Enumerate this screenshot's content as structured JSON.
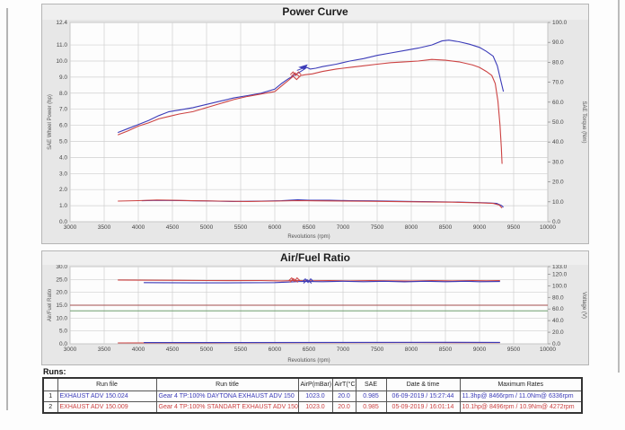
{
  "colors": {
    "run1_blue": "#3b3bb8",
    "run2_red": "#cc4242",
    "afr_ref_red": "#a34d4d",
    "afr_ref_green": "#6f9e6f",
    "grid": "#cfcfcf",
    "panel_gray": "#e7e7e7"
  },
  "runs_table": {
    "title": "Runs:",
    "headers": [
      "",
      "Run file",
      "Run title",
      "AirP(mBar)",
      "AirT(°C)",
      "SAE",
      "Date & time",
      "Maximum Rates"
    ],
    "rows": [
      {
        "num": "1",
        "color": "#3b3bb8",
        "cells": [
          "EXHAUST ADV 150.024",
          "Gear 4 TP:100% DAYTONA EXHAUST ADV 150",
          "1023.0",
          "20.0",
          "0.985",
          "06-09-2019 / 15:27:44",
          "11.3hp@ 8466rpm / 11.0Nm@ 6336rpm"
        ]
      },
      {
        "num": "2",
        "color": "#cc4242",
        "cells": [
          "EXHAUST ADV 150.009",
          "Gear 4 TP:100% STANDART EXHAUST ADV 150",
          "1023.0",
          "20.0",
          "0.985",
          "05-09-2019 / 16:01:14",
          "10.1hp@ 8496rpm / 10.9Nm@ 4272rpm"
        ]
      }
    ]
  },
  "chart_data": [
    {
      "type": "line",
      "title": "Power Curve",
      "xlabel": "Revolutions (rpm)",
      "x": {
        "min": 3000,
        "max": 10000,
        "values": [
          3000,
          3500,
          4000,
          4500,
          5000,
          5500,
          6000,
          6500,
          7000,
          7500,
          8000,
          8500,
          9000,
          9500,
          10000
        ],
        "labels": [
          "3000",
          "3500",
          "4000",
          "4500",
          "5000",
          "5500",
          "6000",
          "6500",
          "7000",
          "7500",
          "8000",
          "8500",
          "9000",
          "9500",
          "10000"
        ]
      },
      "left_axis": {
        "label": "SAE Wheel Power (hp)",
        "values": [
          12.4,
          11,
          10,
          9,
          8,
          7,
          6,
          5,
          4,
          3,
          2,
          1,
          0
        ],
        "labels": [
          "12.4",
          "11.0",
          "10.0",
          "9.0",
          "8.0",
          "7.0",
          "6.0",
          "5.0",
          "4.0",
          "3.0",
          "2.0",
          "1.0",
          "0.0"
        ]
      },
      "right_axis": {
        "label": "SAE Torque (Nm)",
        "values": [
          100,
          90,
          80,
          70,
          60,
          50,
          40,
          30,
          20,
          10,
          0
        ],
        "labels": [
          "100.0",
          "90.0",
          "80.0",
          "70.0",
          "60.0",
          "50.0",
          "40.0",
          "30.0",
          "20.0",
          "10.0",
          "0.0"
        ]
      },
      "series": [
        {
          "name": "daytona-power-hp",
          "color": "#3b3bb8",
          "axis": "left",
          "points": [
            [
              3700,
              5.55
            ],
            [
              3850,
              5.8
            ],
            [
              4000,
              6.05
            ],
            [
              4150,
              6.3
            ],
            [
              4300,
              6.6
            ],
            [
              4450,
              6.85
            ],
            [
              4600,
              6.95
            ],
            [
              4800,
              7.1
            ],
            [
              5000,
              7.3
            ],
            [
              5200,
              7.5
            ],
            [
              5400,
              7.7
            ],
            [
              5600,
              7.85
            ],
            [
              5800,
              8.0
            ],
            [
              6000,
              8.25
            ],
            [
              6100,
              8.6
            ],
            [
              6200,
              8.9
            ],
            [
              6300,
              9.15
            ],
            [
              6400,
              9.4
            ],
            [
              6470,
              9.6
            ],
            [
              6520,
              9.5
            ],
            [
              6600,
              9.55
            ],
            [
              6700,
              9.65
            ],
            [
              6900,
              9.8
            ],
            [
              7100,
              10.0
            ],
            [
              7300,
              10.15
            ],
            [
              7500,
              10.35
            ],
            [
              7700,
              10.5
            ],
            [
              7900,
              10.65
            ],
            [
              8100,
              10.8
            ],
            [
              8300,
              11.0
            ],
            [
              8450,
              11.25
            ],
            [
              8550,
              11.3
            ],
            [
              8700,
              11.2
            ],
            [
              8850,
              11.05
            ],
            [
              9000,
              10.85
            ],
            [
              9100,
              10.6
            ],
            [
              9200,
              10.3
            ],
            [
              9260,
              9.7
            ],
            [
              9310,
              8.8
            ],
            [
              9350,
              8.1
            ]
          ]
        },
        {
          "name": "standart-power-hp",
          "color": "#cc4242",
          "axis": "left",
          "points": [
            [
              3700,
              5.4
            ],
            [
              3850,
              5.65
            ],
            [
              4000,
              5.95
            ],
            [
              4150,
              6.15
            ],
            [
              4300,
              6.4
            ],
            [
              4450,
              6.55
            ],
            [
              4600,
              6.7
            ],
            [
              4800,
              6.85
            ],
            [
              5000,
              7.1
            ],
            [
              5200,
              7.35
            ],
            [
              5400,
              7.6
            ],
            [
              5600,
              7.8
            ],
            [
              5800,
              7.95
            ],
            [
              6000,
              8.1
            ],
            [
              6100,
              8.45
            ],
            [
              6200,
              8.8
            ],
            [
              6270,
              9.05
            ],
            [
              6320,
              8.85
            ],
            [
              6380,
              9.1
            ],
            [
              6450,
              9.15
            ],
            [
              6550,
              9.2
            ],
            [
              6700,
              9.35
            ],
            [
              6900,
              9.5
            ],
            [
              7100,
              9.6
            ],
            [
              7300,
              9.7
            ],
            [
              7500,
              9.8
            ],
            [
              7700,
              9.9
            ],
            [
              7900,
              9.95
            ],
            [
              8100,
              10.0
            ],
            [
              8300,
              10.1
            ],
            [
              8500,
              10.05
            ],
            [
              8700,
              9.95
            ],
            [
              8900,
              9.75
            ],
            [
              9000,
              9.6
            ],
            [
              9100,
              9.35
            ],
            [
              9180,
              9.1
            ],
            [
              9230,
              8.6
            ],
            [
              9270,
              7.5
            ],
            [
              9300,
              6.0
            ],
            [
              9320,
              4.6
            ],
            [
              9330,
              3.6
            ]
          ]
        },
        {
          "name": "daytona-torque-nm",
          "color": "#3b3bb8",
          "axis": "right",
          "points": [
            [
              4050,
              10.55
            ],
            [
              4300,
              10.7
            ],
            [
              4600,
              10.65
            ],
            [
              5000,
              10.45
            ],
            [
              5400,
              10.2
            ],
            [
              5800,
              10.35
            ],
            [
              6100,
              10.6
            ],
            [
              6336,
              11.0
            ],
            [
              6500,
              10.8
            ],
            [
              6800,
              10.75
            ],
            [
              7100,
              10.6
            ],
            [
              7400,
              10.5
            ],
            [
              7700,
              10.35
            ],
            [
              8000,
              10.2
            ],
            [
              8300,
              10.05
            ],
            [
              8600,
              9.9
            ],
            [
              8900,
              9.7
            ],
            [
              9100,
              9.5
            ],
            [
              9250,
              9.2
            ],
            [
              9320,
              8.2
            ],
            [
              9350,
              7.3
            ]
          ]
        },
        {
          "name": "standart-torque-nm",
          "color": "#cc4242",
          "axis": "right",
          "points": [
            [
              3700,
              10.35
            ],
            [
              4000,
              10.6
            ],
            [
              4272,
              10.9
            ],
            [
              4500,
              10.75
            ],
            [
              4800,
              10.55
            ],
            [
              5200,
              10.35
            ],
            [
              5600,
              10.2
            ],
            [
              6000,
              10.35
            ],
            [
              6336,
              10.6
            ],
            [
              6600,
              10.5
            ],
            [
              7000,
              10.4
            ],
            [
              7400,
              10.25
            ],
            [
              7800,
              10.1
            ],
            [
              8200,
              9.95
            ],
            [
              8600,
              9.8
            ],
            [
              9000,
              9.5
            ],
            [
              9200,
              9.2
            ],
            [
              9290,
              8.4
            ],
            [
              9330,
              6.9
            ]
          ]
        }
      ],
      "markers": [
        {
          "rpm": 6470,
          "value": 9.75,
          "color": "#3b3bb8",
          "shape": "arrow"
        },
        {
          "rpm": 6320,
          "value": 9.15,
          "color": "#cc4242",
          "shape": "scribble"
        }
      ],
      "ref_lines": []
    },
    {
      "type": "line",
      "title": "Air/Fuel Ratio",
      "xlabel": "Revolutions (rpm)",
      "x": {
        "min": 3000,
        "max": 10000,
        "values": [
          3000,
          3500,
          4000,
          4500,
          5000,
          5500,
          6000,
          6500,
          7000,
          7500,
          8000,
          8500,
          9000,
          9500,
          10000
        ],
        "labels": [
          "3000",
          "3500",
          "4000",
          "4500",
          "5000",
          "5500",
          "6000",
          "6500",
          "7000",
          "7500",
          "8000",
          "8500",
          "9000",
          "9500",
          "10000"
        ]
      },
      "left_axis": {
        "label": "Air/Fuel Ratio",
        "values": [
          30,
          25,
          20,
          15,
          10,
          5,
          0
        ],
        "labels": [
          "30.0",
          "25.0",
          "20.0",
          "15.0",
          "10.0",
          "5.0",
          "0.0"
        ]
      },
      "right_axis": {
        "label": "Voltage (V)",
        "values": [
          133,
          120,
          100,
          80,
          60,
          40,
          20,
          0
        ],
        "labels": [
          "133.0",
          "120.0",
          "100.0",
          "80.0",
          "60.0",
          "40.0",
          "20.0",
          "0.0"
        ]
      },
      "series": [
        {
          "name": "standart-afr",
          "color": "#cc4242",
          "axis": "left",
          "points": [
            [
              3700,
              24.8
            ],
            [
              4000,
              24.75
            ],
            [
              4300,
              24.7
            ],
            [
              4600,
              24.65
            ],
            [
              5000,
              24.6
            ],
            [
              5400,
              24.55
            ],
            [
              5800,
              24.6
            ],
            [
              6100,
              24.45
            ],
            [
              6300,
              24.6
            ],
            [
              6500,
              24.5
            ],
            [
              6800,
              24.6
            ],
            [
              7100,
              24.45
            ],
            [
              7400,
              24.6
            ],
            [
              7700,
              24.5
            ],
            [
              8000,
              24.4
            ],
            [
              8300,
              24.6
            ],
            [
              8600,
              24.45
            ],
            [
              8900,
              24.6
            ],
            [
              9100,
              24.5
            ],
            [
              9300,
              24.55
            ]
          ]
        },
        {
          "name": "daytona-afr",
          "color": "#3b3bb8",
          "axis": "left",
          "points": [
            [
              4080,
              23.8
            ],
            [
              4400,
              23.75
            ],
            [
              4800,
              23.7
            ],
            [
              5200,
              23.7
            ],
            [
              5600,
              23.75
            ],
            [
              6000,
              23.8
            ],
            [
              6200,
              24.0
            ],
            [
              6400,
              24.25
            ],
            [
              6700,
              24.15
            ],
            [
              7000,
              24.3
            ],
            [
              7300,
              24.15
            ],
            [
              7600,
              24.3
            ],
            [
              7900,
              24.1
            ],
            [
              8200,
              24.3
            ],
            [
              8500,
              24.15
            ],
            [
              8800,
              24.3
            ],
            [
              9000,
              24.15
            ],
            [
              9300,
              24.2
            ]
          ]
        },
        {
          "name": "standart-baseline",
          "color": "#cc4242",
          "axis": "left",
          "points": [
            [
              3700,
              0.35
            ],
            [
              5000,
              0.4
            ],
            [
              6500,
              0.45
            ],
            [
              8000,
              0.5
            ],
            [
              9300,
              0.45
            ]
          ]
        },
        {
          "name": "daytona-baseline",
          "color": "#3b3bb8",
          "axis": "left",
          "points": [
            [
              4080,
              0.5
            ],
            [
              5500,
              0.5
            ],
            [
              7000,
              0.55
            ],
            [
              8500,
              0.6
            ],
            [
              9300,
              0.55
            ]
          ]
        }
      ],
      "markers": [
        {
          "rpm": 6300,
          "value": 24.6,
          "color": "#cc4242",
          "shape": "scribble"
        },
        {
          "rpm": 6500,
          "value": 24.2,
          "color": "#3b3bb8",
          "shape": "scribble"
        }
      ],
      "ref_lines": [
        {
          "value": 15.0,
          "color": "#a34d4d"
        },
        {
          "value": 12.8,
          "color": "#6f9e6f"
        }
      ]
    }
  ]
}
